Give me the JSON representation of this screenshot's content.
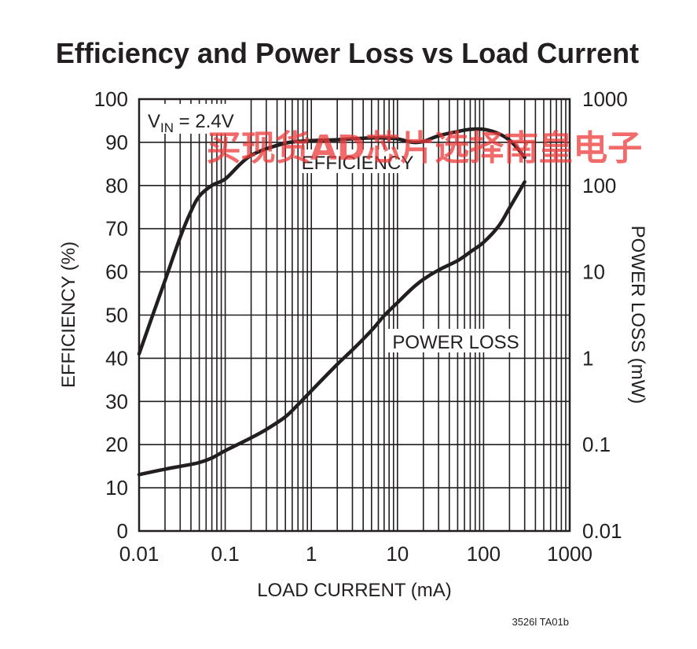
{
  "chart_data": {
    "type": "line",
    "title": "Efficiency and Power Loss vs Load Current",
    "xlabel": "LOAD CURRENT (mA)",
    "ylabel": "EFFICIENCY (%)",
    "y2label": "POWER LOSS (mW)",
    "x_scale": "log",
    "xlim": [
      0.01,
      1000
    ],
    "ylim": [
      0,
      100
    ],
    "y2_scale": "log",
    "y2lim": [
      0.01,
      1000
    ],
    "x_ticks": [
      "0.01",
      "0.1",
      "1",
      "10",
      "100",
      "1000"
    ],
    "y_ticks": [
      "0",
      "10",
      "20",
      "30",
      "40",
      "50",
      "60",
      "70",
      "80",
      "90",
      "100"
    ],
    "y2_ticks": [
      "0.01",
      "0.1",
      "1",
      "10",
      "100",
      "1000"
    ],
    "grid": true,
    "annotation": {
      "main": "V",
      "sub": "IN",
      "rest": " = 2.4V"
    },
    "figure_code": "3526l TA01b",
    "watermark": "买现货AD芯片选择南皇电子",
    "series": [
      {
        "name": "EFFICIENCY",
        "axis": "left",
        "points": [
          [
            0.01,
            41
          ],
          [
            0.015,
            51
          ],
          [
            0.02,
            58
          ],
          [
            0.03,
            68
          ],
          [
            0.04,
            74
          ],
          [
            0.05,
            77.5
          ],
          [
            0.07,
            80
          ],
          [
            0.1,
            81.5
          ],
          [
            0.15,
            85
          ],
          [
            0.2,
            87
          ],
          [
            0.3,
            88.5
          ],
          [
            0.5,
            89.8
          ],
          [
            0.7,
            90.2
          ],
          [
            1,
            90.4
          ],
          [
            2,
            90.6
          ],
          [
            3,
            90.8
          ],
          [
            5,
            91
          ],
          [
            7,
            91
          ],
          [
            10,
            90.8
          ],
          [
            15,
            90
          ],
          [
            20,
            90.2
          ],
          [
            30,
            91.5
          ],
          [
            50,
            92.5
          ],
          [
            70,
            93
          ],
          [
            100,
            93
          ],
          [
            150,
            92
          ],
          [
            200,
            90.5
          ],
          [
            250,
            88.5
          ],
          [
            300,
            86.5
          ]
        ]
      },
      {
        "name": "POWER LOSS",
        "axis": "right",
        "points": [
          [
            0.01,
            0.045
          ],
          [
            0.02,
            0.052
          ],
          [
            0.03,
            0.056
          ],
          [
            0.05,
            0.062
          ],
          [
            0.07,
            0.07
          ],
          [
            0.1,
            0.085
          ],
          [
            0.2,
            0.12
          ],
          [
            0.3,
            0.15
          ],
          [
            0.5,
            0.21
          ],
          [
            0.7,
            0.29
          ],
          [
            1,
            0.42
          ],
          [
            2,
            0.85
          ],
          [
            3,
            1.25
          ],
          [
            5,
            2.1
          ],
          [
            7,
            3.1
          ],
          [
            10,
            4.4
          ],
          [
            15,
            6.5
          ],
          [
            20,
            8.2
          ],
          [
            30,
            10.5
          ],
          [
            50,
            13.5
          ],
          [
            70,
            17
          ],
          [
            100,
            22
          ],
          [
            150,
            34
          ],
          [
            200,
            55
          ],
          [
            300,
            110
          ]
        ]
      }
    ]
  }
}
